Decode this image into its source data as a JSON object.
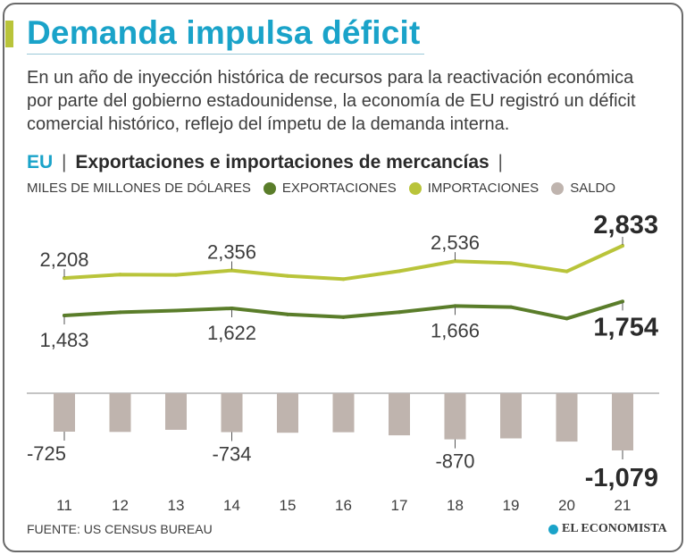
{
  "title": "Demanda impulsa déficit",
  "lede": "En un año de inyección histórica de recursos para la reactivación económica por parte del gobierno estadounidense, la economía de EU registró un déficit comercial histórico, reflejo del ímpetu de la demanda interna.",
  "subtitle": {
    "country": "EU",
    "sep1": "|",
    "text": "Exportaciones e importaciones de mercancías",
    "sep2": "|"
  },
  "legend": {
    "units": "MILES DE MILLONES DE DÓLARES",
    "exports": "EXPORTACIONES",
    "imports": "IMPORTACIONES",
    "balance": "SALDO"
  },
  "colors": {
    "exports": "#5a7d2a",
    "imports": "#b9c43a",
    "balance": "#bfb4ae",
    "title": "#1aa3c9"
  },
  "chart_data": {
    "type": "line",
    "title": "Exportaciones e importaciones de mercancías",
    "ylabel": "MILES DE MILLONES DE DÓLARES",
    "categories": [
      "11",
      "12",
      "13",
      "14",
      "15",
      "16",
      "17",
      "18",
      "19",
      "20",
      "21"
    ],
    "series": [
      {
        "name": "IMPORTACIONES",
        "values": [
          2208,
          2276,
          2268,
          2356,
          2248,
          2187,
          2341,
          2536,
          2498,
          2337,
          2833
        ],
        "labels": [
          {
            "index": 0,
            "text": "2,208"
          },
          {
            "index": 3,
            "text": "2,356"
          },
          {
            "index": 7,
            "text": "2,536"
          },
          {
            "index": 10,
            "text": "2,833"
          }
        ]
      },
      {
        "name": "EXPORTACIONES",
        "values": [
          1483,
          1546,
          1578,
          1622,
          1503,
          1451,
          1547,
          1666,
          1646,
          1425,
          1754
        ],
        "labels": [
          {
            "index": 0,
            "text": "1,483"
          },
          {
            "index": 3,
            "text": "1,622"
          },
          {
            "index": 7,
            "text": "1,666"
          },
          {
            "index": 10,
            "text": "1,754"
          }
        ]
      },
      {
        "name": "SALDO",
        "type": "bar",
        "values": [
          -725,
          -730,
          -690,
          -734,
          -745,
          -736,
          -794,
          -870,
          -852,
          -912,
          -1079
        ],
        "labels": [
          {
            "index": 0,
            "text": "-725"
          },
          {
            "index": 3,
            "text": "-734"
          },
          {
            "index": 7,
            "text": "-870"
          },
          {
            "index": 10,
            "text": "-1,079"
          }
        ]
      }
    ]
  },
  "footer": {
    "source": "FUENTE: US CENSUS BUREAU",
    "brand": "EL ECONOMISTA"
  }
}
